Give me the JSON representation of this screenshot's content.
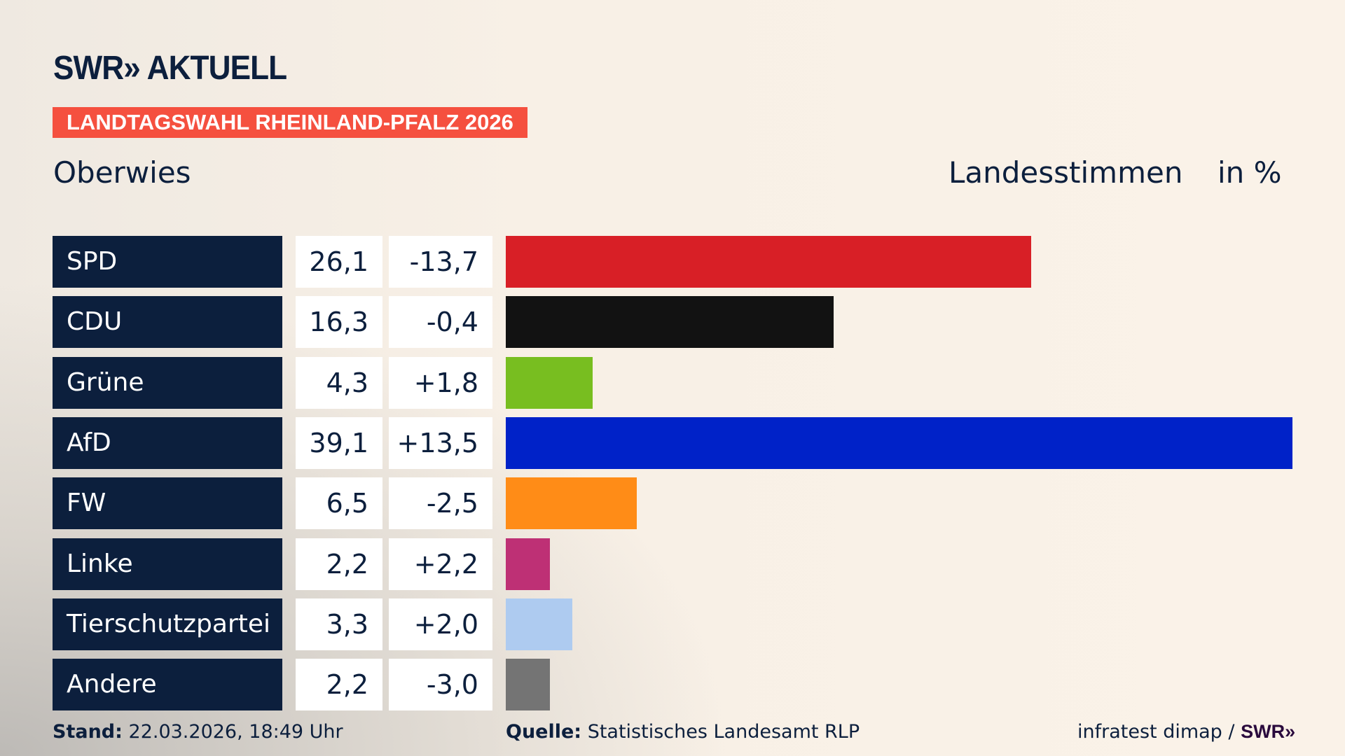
{
  "header": {
    "logo": "SWR» AKTUELL",
    "banner": "LANDTAGSWAHL RHEINLAND-PFALZ 2026",
    "region": "Oberwies",
    "metric": "Landesstimmen",
    "unit": "in %"
  },
  "chart_data": {
    "type": "bar",
    "orientation": "horizontal",
    "categories": [
      "SPD",
      "CDU",
      "Grüne",
      "AfD",
      "FW",
      "Linke",
      "Tierschutzpartei",
      "Andere"
    ],
    "values": [
      26.1,
      16.3,
      4.3,
      39.1,
      6.5,
      2.2,
      3.3,
      2.2
    ],
    "value_labels": [
      "26,1",
      "16,3",
      "4,3",
      "39,1",
      "6,5",
      "2,2",
      "3,3",
      "2,2"
    ],
    "diff_labels": [
      "-13,7",
      "-0,4",
      "+1,8",
      "+13,5",
      "-2,5",
      "+2,2",
      "+2,0",
      "-3,0"
    ],
    "differences": [
      -13.7,
      -0.4,
      1.8,
      13.5,
      -2.5,
      2.2,
      2.0,
      -3.0
    ],
    "colors": [
      "#d81f26",
      "#121212",
      "#78be20",
      "#0022c8",
      "#ff8c17",
      "#be3075",
      "#aecbf0",
      "#747474"
    ],
    "xlim": [
      0,
      39.1
    ],
    "grid": false
  },
  "footer": {
    "stand_label": "Stand:",
    "stand_value": "22.03.2026, 18:49 Uhr",
    "source_label": "Quelle:",
    "source_value": "Statistisches Landesamt RLP",
    "credit": "infratest dimap /",
    "credit_logo": "SWR»"
  }
}
